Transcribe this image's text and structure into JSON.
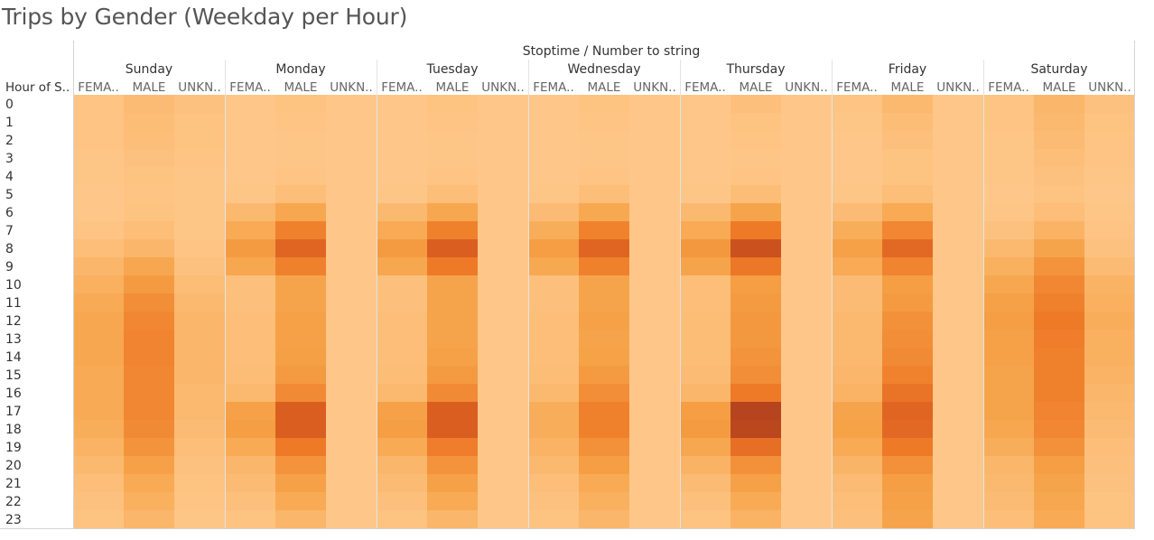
{
  "title": "Trips by Gender (Weekday per Hour)",
  "chart_data": {
    "type": "heatmap",
    "title": "Trips by Gender (Weekday per Hour)",
    "column_header": "Stoptime / Number to string",
    "row_header": "Hour of S..",
    "days": [
      "Sunday",
      "Monday",
      "Tuesday",
      "Wednesday",
      "Thursday",
      "Friday",
      "Saturday"
    ],
    "genders": [
      "FEMA..",
      "MALE",
      "UNKN.."
    ],
    "hours": [
      "0",
      "1",
      "2",
      "3",
      "4",
      "5",
      "6",
      "7",
      "8",
      "9",
      "10",
      "11",
      "12",
      "13",
      "14",
      "15",
      "16",
      "17",
      "18",
      "19",
      "20",
      "21",
      "22",
      "23"
    ],
    "color_range": [
      "#fec789",
      "#a0381d"
    ],
    "values_relative": [
      [
        0.02,
        0.08,
        0.04,
        0.0,
        0.03,
        0.0,
        0.0,
        0.03,
        0.0,
        0.0,
        0.03,
        0.0,
        0.0,
        0.05,
        0.0,
        0.02,
        0.1,
        0.0,
        0.02,
        0.12,
        0.04
      ],
      [
        0.02,
        0.07,
        0.03,
        0.0,
        0.02,
        0.0,
        0.0,
        0.02,
        0.0,
        0.0,
        0.02,
        0.0,
        0.0,
        0.03,
        0.0,
        0.01,
        0.07,
        0.0,
        0.02,
        0.1,
        0.03
      ],
      [
        0.02,
        0.06,
        0.03,
        0.0,
        0.01,
        0.0,
        0.0,
        0.01,
        0.0,
        0.0,
        0.01,
        0.0,
        0.0,
        0.02,
        0.0,
        0.0,
        0.05,
        0.0,
        0.01,
        0.08,
        0.02
      ],
      [
        0.01,
        0.04,
        0.02,
        0.0,
        0.01,
        0.0,
        0.0,
        0.01,
        0.0,
        0.0,
        0.01,
        0.0,
        0.0,
        0.01,
        0.0,
        0.0,
        0.03,
        0.0,
        0.01,
        0.06,
        0.02
      ],
      [
        0.01,
        0.03,
        0.01,
        0.0,
        0.02,
        0.0,
        0.0,
        0.02,
        0.0,
        0.0,
        0.02,
        0.0,
        0.0,
        0.02,
        0.0,
        0.0,
        0.03,
        0.0,
        0.01,
        0.04,
        0.01
      ],
      [
        0.0,
        0.02,
        0.01,
        0.01,
        0.06,
        0.0,
        0.01,
        0.06,
        0.0,
        0.01,
        0.06,
        0.0,
        0.01,
        0.07,
        0.0,
        0.01,
        0.06,
        0.0,
        0.0,
        0.03,
        0.0
      ],
      [
        0.0,
        0.03,
        0.01,
        0.1,
        0.22,
        0.0,
        0.1,
        0.22,
        0.0,
        0.08,
        0.21,
        0.0,
        0.1,
        0.24,
        0.0,
        0.08,
        0.2,
        0.0,
        0.01,
        0.06,
        0.01
      ],
      [
        0.02,
        0.06,
        0.01,
        0.2,
        0.46,
        0.0,
        0.2,
        0.46,
        0.0,
        0.18,
        0.45,
        0.0,
        0.2,
        0.5,
        0.0,
        0.18,
        0.42,
        0.0,
        0.04,
        0.14,
        0.02
      ],
      [
        0.06,
        0.12,
        0.02,
        0.3,
        0.65,
        0.0,
        0.3,
        0.7,
        0.0,
        0.28,
        0.65,
        0.0,
        0.32,
        0.8,
        0.0,
        0.26,
        0.62,
        0.0,
        0.1,
        0.24,
        0.04
      ],
      [
        0.12,
        0.22,
        0.04,
        0.22,
        0.46,
        0.0,
        0.22,
        0.5,
        0.0,
        0.21,
        0.46,
        0.0,
        0.24,
        0.52,
        0.0,
        0.2,
        0.44,
        0.0,
        0.16,
        0.34,
        0.08
      ],
      [
        0.16,
        0.3,
        0.07,
        0.05,
        0.24,
        0.0,
        0.05,
        0.24,
        0.0,
        0.05,
        0.24,
        0.0,
        0.06,
        0.28,
        0.0,
        0.08,
        0.28,
        0.0,
        0.22,
        0.42,
        0.14
      ],
      [
        0.2,
        0.38,
        0.1,
        0.05,
        0.24,
        0.0,
        0.05,
        0.24,
        0.0,
        0.05,
        0.24,
        0.0,
        0.06,
        0.3,
        0.0,
        0.08,
        0.3,
        0.0,
        0.26,
        0.46,
        0.16
      ],
      [
        0.22,
        0.42,
        0.12,
        0.06,
        0.26,
        0.0,
        0.06,
        0.24,
        0.0,
        0.06,
        0.26,
        0.0,
        0.07,
        0.32,
        0.0,
        0.1,
        0.36,
        0.0,
        0.28,
        0.5,
        0.18
      ],
      [
        0.22,
        0.44,
        0.12,
        0.06,
        0.26,
        0.0,
        0.06,
        0.24,
        0.0,
        0.06,
        0.24,
        0.0,
        0.07,
        0.32,
        0.0,
        0.1,
        0.38,
        0.0,
        0.26,
        0.48,
        0.16
      ],
      [
        0.22,
        0.44,
        0.12,
        0.06,
        0.27,
        0.0,
        0.06,
        0.26,
        0.0,
        0.06,
        0.25,
        0.0,
        0.07,
        0.34,
        0.0,
        0.1,
        0.4,
        0.0,
        0.26,
        0.46,
        0.16
      ],
      [
        0.2,
        0.42,
        0.11,
        0.07,
        0.3,
        0.0,
        0.07,
        0.3,
        0.0,
        0.07,
        0.3,
        0.0,
        0.08,
        0.38,
        0.0,
        0.12,
        0.45,
        0.0,
        0.24,
        0.46,
        0.14
      ],
      [
        0.2,
        0.42,
        0.1,
        0.1,
        0.4,
        0.0,
        0.1,
        0.4,
        0.0,
        0.1,
        0.38,
        0.0,
        0.12,
        0.5,
        0.0,
        0.14,
        0.55,
        0.0,
        0.24,
        0.46,
        0.12
      ],
      [
        0.2,
        0.42,
        0.1,
        0.26,
        0.7,
        0.0,
        0.26,
        0.7,
        0.0,
        0.18,
        0.46,
        0.0,
        0.28,
        0.9,
        0.0,
        0.24,
        0.65,
        0.0,
        0.24,
        0.44,
        0.1
      ],
      [
        0.18,
        0.4,
        0.08,
        0.28,
        0.7,
        0.0,
        0.28,
        0.7,
        0.0,
        0.18,
        0.46,
        0.0,
        0.3,
        0.88,
        0.0,
        0.25,
        0.62,
        0.0,
        0.22,
        0.42,
        0.08
      ],
      [
        0.14,
        0.34,
        0.06,
        0.2,
        0.5,
        0.0,
        0.2,
        0.48,
        0.0,
        0.14,
        0.36,
        0.0,
        0.22,
        0.58,
        0.0,
        0.2,
        0.5,
        0.0,
        0.18,
        0.36,
        0.06
      ],
      [
        0.1,
        0.26,
        0.04,
        0.12,
        0.35,
        0.0,
        0.12,
        0.35,
        0.0,
        0.1,
        0.28,
        0.0,
        0.14,
        0.36,
        0.0,
        0.13,
        0.36,
        0.0,
        0.12,
        0.28,
        0.05
      ],
      [
        0.06,
        0.2,
        0.03,
        0.08,
        0.26,
        0.0,
        0.08,
        0.26,
        0.0,
        0.06,
        0.2,
        0.0,
        0.08,
        0.26,
        0.0,
        0.08,
        0.28,
        0.0,
        0.1,
        0.24,
        0.04
      ],
      [
        0.04,
        0.16,
        0.02,
        0.05,
        0.2,
        0.0,
        0.05,
        0.2,
        0.0,
        0.04,
        0.16,
        0.0,
        0.05,
        0.2,
        0.0,
        0.06,
        0.26,
        0.0,
        0.08,
        0.22,
        0.03
      ],
      [
        0.03,
        0.12,
        0.01,
        0.03,
        0.12,
        0.0,
        0.03,
        0.12,
        0.0,
        0.03,
        0.12,
        0.0,
        0.03,
        0.14,
        0.0,
        0.05,
        0.24,
        0.0,
        0.06,
        0.2,
        0.03
      ]
    ]
  }
}
